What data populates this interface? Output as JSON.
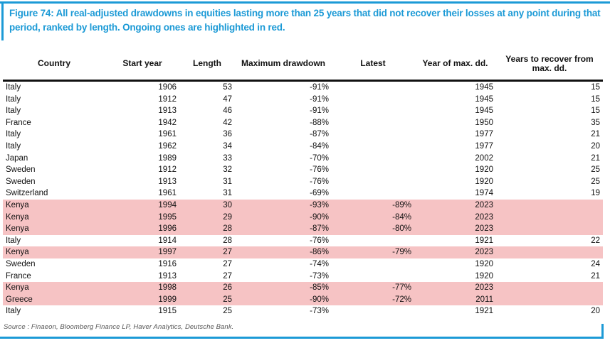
{
  "figure": {
    "title": "Figure 74: All real-adjusted drawdowns in equities lasting more than 25 years that did not recover their losses at any point during that period, ranked by length. Ongoing ones are highlighted in red.",
    "source": "Source : Finaeon, Bloomberg Finance LP, Haver Analytics, Deutsche Bank."
  },
  "colors": {
    "accent_blue": "#1c9ad6",
    "highlight_pink": "#f6c3c4",
    "text_black": "#111111",
    "source_gray": "#555555"
  },
  "chart_data": {
    "type": "table",
    "title": "Figure 74: All real-adjusted drawdowns in equities lasting more than 25 years that did not recover their losses at any point during that period, ranked by length. Ongoing ones are highlighted in red.",
    "columns": [
      "Country",
      "Start year",
      "Length",
      "Maximum drawdown",
      "Latest",
      "Year of max. dd.",
      "Years to recover from max. dd."
    ],
    "column_keys": [
      "country",
      "start_year",
      "length",
      "max_drawdown",
      "latest",
      "year_of_max_dd",
      "years_to_recover"
    ],
    "highlight_note": "Rows highlighted in red are ongoing drawdowns",
    "rows": [
      {
        "country": "Italy",
        "start_year": "1906",
        "length": "53",
        "max_drawdown": "-91%",
        "latest": "",
        "year_of_max_dd": "1945",
        "years_to_recover": "15",
        "ongoing": false
      },
      {
        "country": "Italy",
        "start_year": "1912",
        "length": "47",
        "max_drawdown": "-91%",
        "latest": "",
        "year_of_max_dd": "1945",
        "years_to_recover": "15",
        "ongoing": false
      },
      {
        "country": "Italy",
        "start_year": "1913",
        "length": "46",
        "max_drawdown": "-91%",
        "latest": "",
        "year_of_max_dd": "1945",
        "years_to_recover": "15",
        "ongoing": false
      },
      {
        "country": "France",
        "start_year": "1942",
        "length": "42",
        "max_drawdown": "-88%",
        "latest": "",
        "year_of_max_dd": "1950",
        "years_to_recover": "35",
        "ongoing": false
      },
      {
        "country": "Italy",
        "start_year": "1961",
        "length": "36",
        "max_drawdown": "-87%",
        "latest": "",
        "year_of_max_dd": "1977",
        "years_to_recover": "21",
        "ongoing": false
      },
      {
        "country": "Italy",
        "start_year": "1962",
        "length": "34",
        "max_drawdown": "-84%",
        "latest": "",
        "year_of_max_dd": "1977",
        "years_to_recover": "20",
        "ongoing": false
      },
      {
        "country": "Japan",
        "start_year": "1989",
        "length": "33",
        "max_drawdown": "-70%",
        "latest": "",
        "year_of_max_dd": "2002",
        "years_to_recover": "21",
        "ongoing": false
      },
      {
        "country": "Sweden",
        "start_year": "1912",
        "length": "32",
        "max_drawdown": "-76%",
        "latest": "",
        "year_of_max_dd": "1920",
        "years_to_recover": "25",
        "ongoing": false
      },
      {
        "country": "Sweden",
        "start_year": "1913",
        "length": "31",
        "max_drawdown": "-76%",
        "latest": "",
        "year_of_max_dd": "1920",
        "years_to_recover": "25",
        "ongoing": false
      },
      {
        "country": "Switzerland",
        "start_year": "1961",
        "length": "31",
        "max_drawdown": "-69%",
        "latest": "",
        "year_of_max_dd": "1974",
        "years_to_recover": "19",
        "ongoing": false
      },
      {
        "country": "Kenya",
        "start_year": "1994",
        "length": "30",
        "max_drawdown": "-93%",
        "latest": "-89%",
        "year_of_max_dd": "2023",
        "years_to_recover": "",
        "ongoing": true
      },
      {
        "country": "Kenya",
        "start_year": "1995",
        "length": "29",
        "max_drawdown": "-90%",
        "latest": "-84%",
        "year_of_max_dd": "2023",
        "years_to_recover": "",
        "ongoing": true
      },
      {
        "country": "Kenya",
        "start_year": "1996",
        "length": "28",
        "max_drawdown": "-87%",
        "latest": "-80%",
        "year_of_max_dd": "2023",
        "years_to_recover": "",
        "ongoing": true
      },
      {
        "country": "Italy",
        "start_year": "1914",
        "length": "28",
        "max_drawdown": "-76%",
        "latest": "",
        "year_of_max_dd": "1921",
        "years_to_recover": "22",
        "ongoing": false
      },
      {
        "country": "Kenya",
        "start_year": "1997",
        "length": "27",
        "max_drawdown": "-86%",
        "latest": "-79%",
        "year_of_max_dd": "2023",
        "years_to_recover": "",
        "ongoing": true
      },
      {
        "country": "Sweden",
        "start_year": "1916",
        "length": "27",
        "max_drawdown": "-74%",
        "latest": "",
        "year_of_max_dd": "1920",
        "years_to_recover": "24",
        "ongoing": false
      },
      {
        "country": "France",
        "start_year": "1913",
        "length": "27",
        "max_drawdown": "-73%",
        "latest": "",
        "year_of_max_dd": "1920",
        "years_to_recover": "21",
        "ongoing": false
      },
      {
        "country": "Kenya",
        "start_year": "1998",
        "length": "26",
        "max_drawdown": "-85%",
        "latest": "-77%",
        "year_of_max_dd": "2023",
        "years_to_recover": "",
        "ongoing": true
      },
      {
        "country": "Greece",
        "start_year": "1999",
        "length": "25",
        "max_drawdown": "-90%",
        "latest": "-72%",
        "year_of_max_dd": "2011",
        "years_to_recover": "",
        "ongoing": true
      },
      {
        "country": "Italy",
        "start_year": "1915",
        "length": "25",
        "max_drawdown": "-73%",
        "latest": "",
        "year_of_max_dd": "1921",
        "years_to_recover": "20",
        "ongoing": false
      }
    ]
  }
}
